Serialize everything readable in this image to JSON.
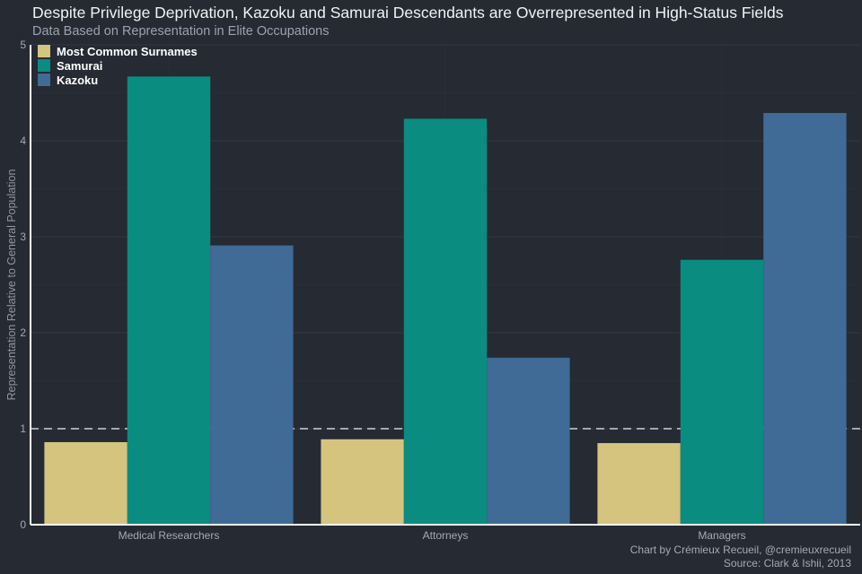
{
  "chart_data": {
    "type": "bar",
    "title": "Despite Privilege Deprivation, Kazoku and Samurai Descendants are Overrepresented in High-Status Fields",
    "subtitle": "Data Based on Representation in Elite Occupations",
    "xlabel": "",
    "ylabel": "Representation Relative to General Population",
    "ylim": [
      0,
      5
    ],
    "yticks": [
      "0",
      "1",
      "2",
      "3",
      "4",
      "5"
    ],
    "reference_line": 1,
    "grid": true,
    "legend_position": "top-left",
    "categories": [
      "Medical Researchers",
      "Attorneys",
      "Managers"
    ],
    "series": [
      {
        "name": "Most Common Surnames",
        "color": "#d4c47e",
        "values": [
          0.86,
          0.89,
          0.85
        ]
      },
      {
        "name": "Samurai",
        "color": "#0a8c80",
        "values": [
          4.67,
          4.23,
          2.76
        ]
      },
      {
        "name": "Kazoku",
        "color": "#3f6b96",
        "values": [
          2.91,
          1.74,
          4.29
        ]
      }
    ],
    "caption_lines": [
      "Chart by Crémieux Recueil, @cremieuxrecueil",
      "Source: Clark & Ishii, 2013"
    ]
  },
  "colors": {
    "background": "#252a33",
    "grid": "#323843",
    "reference_line": "#a3a8b0",
    "axis": "#ffffff"
  }
}
